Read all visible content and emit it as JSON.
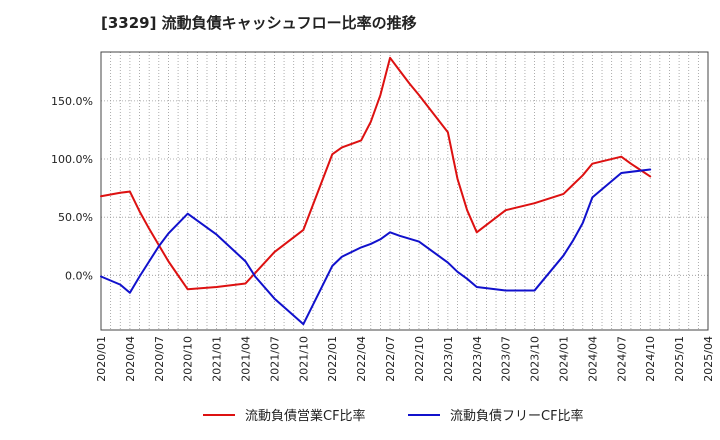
{
  "chart_data": {
    "type": "line",
    "title": "[3329]  流動負債キャッシュフロー比率の推移",
    "xlabel": "",
    "ylabel": "",
    "x_range": [
      "2020/01",
      "2025/04"
    ],
    "ylim": [
      -47,
      192
    ],
    "y_ticks": [
      0,
      50,
      100,
      150
    ],
    "y_tick_labels": [
      "0.0%",
      "50.0%",
      "100.0%",
      "150.0%"
    ],
    "x_tick_labels": [
      "2020/01",
      "2020/04",
      "2020/07",
      "2020/10",
      "2021/01",
      "2021/04",
      "2021/07",
      "2021/10",
      "2022/01",
      "2022/04",
      "2022/07",
      "2022/10",
      "2023/01",
      "2023/04",
      "2023/07",
      "2023/10",
      "2024/01",
      "2024/04",
      "2024/07",
      "2024/10",
      "2025/01",
      "2025/04"
    ],
    "grid": true,
    "legend_position": "bottom",
    "series": [
      {
        "name": "流動負債営業CF比率",
        "color": "#dd1111",
        "points": [
          [
            "2020/01",
            68
          ],
          [
            "2020/03",
            71
          ],
          [
            "2020/04",
            72
          ],
          [
            "2020/05",
            55
          ],
          [
            "2020/06",
            40
          ],
          [
            "2020/07",
            26
          ],
          [
            "2020/08",
            12
          ],
          [
            "2020/10",
            -12
          ],
          [
            "2021/01",
            -10
          ],
          [
            "2021/04",
            -7
          ],
          [
            "2021/07",
            20
          ],
          [
            "2021/10",
            39
          ],
          [
            "2022/01",
            104
          ],
          [
            "2022/02",
            110
          ],
          [
            "2022/04",
            116
          ],
          [
            "2022/05",
            132
          ],
          [
            "2022/06",
            155
          ],
          [
            "2022/07",
            187
          ],
          [
            "2022/08",
            176
          ],
          [
            "2022/09",
            165
          ],
          [
            "2022/10",
            155
          ],
          [
            "2023/01",
            123
          ],
          [
            "2023/02",
            83
          ],
          [
            "2023/03",
            56
          ],
          [
            "2023/04",
            37
          ],
          [
            "2023/07",
            56
          ],
          [
            "2023/10",
            62
          ],
          [
            "2024/01",
            70
          ],
          [
            "2024/02",
            78
          ],
          [
            "2024/03",
            86
          ],
          [
            "2024/04",
            96
          ],
          [
            "2024/07",
            102
          ],
          [
            "2024/08",
            96
          ],
          [
            "2024/10",
            85
          ]
        ]
      },
      {
        "name": "流動負債フリーCF比率",
        "color": "#1111cc",
        "points": [
          [
            "2020/01",
            -1
          ],
          [
            "2020/03",
            -8
          ],
          [
            "2020/04",
            -15
          ],
          [
            "2020/05",
            -1
          ],
          [
            "2020/06",
            12
          ],
          [
            "2020/07",
            25
          ],
          [
            "2020/08",
            36
          ],
          [
            "2020/10",
            53
          ],
          [
            "2021/01",
            35
          ],
          [
            "2021/04",
            12
          ],
          [
            "2021/05",
            -1
          ],
          [
            "2021/07",
            -20
          ],
          [
            "2021/10",
            -42
          ],
          [
            "2022/01",
            8
          ],
          [
            "2022/02",
            16
          ],
          [
            "2022/04",
            24
          ],
          [
            "2022/05",
            27
          ],
          [
            "2022/06",
            31
          ],
          [
            "2022/07",
            37
          ],
          [
            "2022/08",
            34
          ],
          [
            "2022/10",
            29
          ],
          [
            "2023/01",
            11
          ],
          [
            "2023/02",
            3
          ],
          [
            "2023/03",
            -3
          ],
          [
            "2023/04",
            -10
          ],
          [
            "2023/07",
            -13
          ],
          [
            "2023/10",
            -13
          ],
          [
            "2024/01",
            17
          ],
          [
            "2024/02",
            30
          ],
          [
            "2024/03",
            45
          ],
          [
            "2024/04",
            67
          ],
          [
            "2024/07",
            88
          ],
          [
            "2024/10",
            91
          ]
        ]
      }
    ]
  }
}
